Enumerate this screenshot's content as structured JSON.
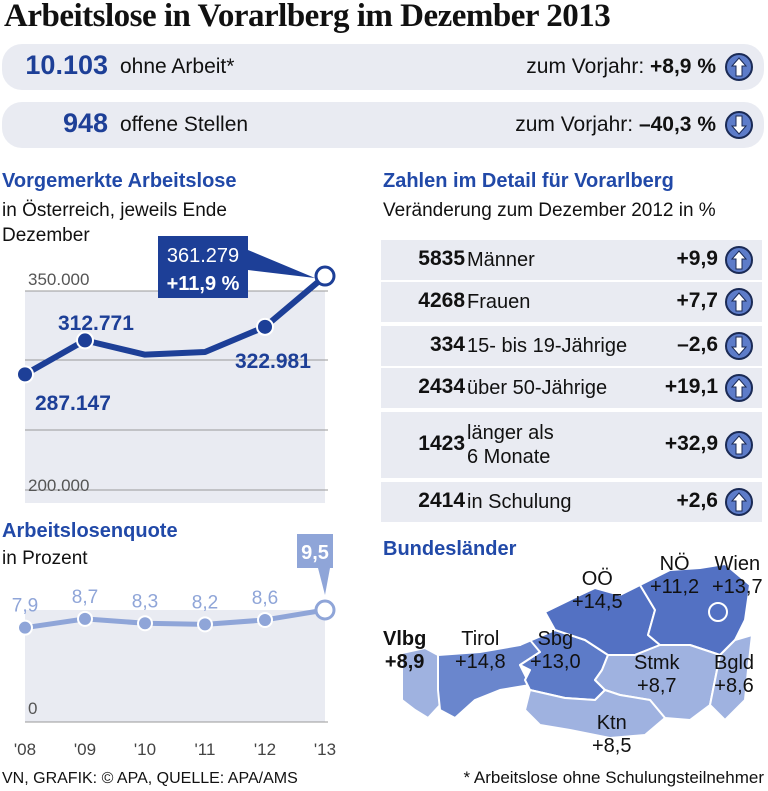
{
  "title": "Arbeitslose in Vorarlberg im Dezember 2013",
  "summary": [
    {
      "value": "10.103",
      "label": "ohne Arbeit*",
      "change_label": "zum Vorjahr:",
      "change": "+8,9 %",
      "direction": "up"
    },
    {
      "value": "948",
      "label": "offene Stellen",
      "change_label": "zum Vorjahr:",
      "change": "–40,3 %",
      "direction": "down"
    }
  ],
  "colors": {
    "dark_blue": "#1d3f97",
    "light_blue": "#8fa5d8",
    "band": "#e9ebf2",
    "map_dark": "#5371c3",
    "map_mid": "#6a86cd",
    "map_light": "#9fb2e0"
  },
  "chart_data": [
    {
      "type": "line",
      "title": "Vorgemerkte Arbeitslose",
      "subtitle": "in Österreich, jeweils Ende Dezember",
      "x": [
        "'08",
        "'09",
        "'10",
        "'11",
        "'12",
        "'13"
      ],
      "values": [
        287147,
        312771,
        302000,
        304000,
        322981,
        361279
      ],
      "data_labels": [
        "287.147",
        "312.771",
        "",
        "",
        "322.981",
        "361.279"
      ],
      "callout": {
        "value": "361.279",
        "change": "+11,9 %"
      },
      "yticks": [
        "350.000",
        "200.000"
      ],
      "ylim": [
        200000,
        350000
      ],
      "grid": true,
      "color": "#1d3f97"
    },
    {
      "type": "line",
      "title": "Arbeitslosenquote",
      "subtitle": "in Prozent",
      "x": [
        "'08",
        "'09",
        "'10",
        "'11",
        "'12",
        "'13"
      ],
      "values": [
        7.9,
        8.7,
        8.3,
        8.2,
        8.6,
        9.5
      ],
      "data_labels": [
        "7,9",
        "8,7",
        "8,3",
        "8,2",
        "8,6",
        "9,5"
      ],
      "yticks": [
        "0"
      ],
      "ylim": [
        0,
        9.5
      ],
      "grid": false,
      "color": "#8fa5d8"
    }
  ],
  "detail": {
    "title": "Zahlen im Detail für Vorarlberg",
    "subtitle": "Veränderung zum Dezember 2012 in %",
    "rows": [
      {
        "value": "5835",
        "label": "Männer",
        "change": "+9,9",
        "direction": "up"
      },
      {
        "value": "4268",
        "label": "Frauen",
        "change": "+7,7",
        "direction": "up"
      },
      {
        "value": "334",
        "label": "15- bis 19-Jährige",
        "change": "–2,6",
        "direction": "down"
      },
      {
        "value": "2434",
        "label": "über 50-Jährige",
        "change": "+19,1",
        "direction": "up"
      },
      {
        "value": "1423",
        "label": "länger als",
        "label2": "6 Monate",
        "change": "+32,9",
        "direction": "up"
      },
      {
        "value": "2414",
        "label": "in Schulung",
        "change": "+2,6",
        "direction": "up"
      }
    ]
  },
  "map": {
    "title": "Bundesländer",
    "states": [
      {
        "name": "Vlbg",
        "change": "+8,9"
      },
      {
        "name": "Tirol",
        "change": "+14,8"
      },
      {
        "name": "Sbg",
        "change": "+13,0"
      },
      {
        "name": "OÖ",
        "change": "+14,5"
      },
      {
        "name": "NÖ",
        "change": "+11,2"
      },
      {
        "name": "Wien",
        "change": "+13,7"
      },
      {
        "name": "Stmk",
        "change": "+8,7"
      },
      {
        "name": "Bgld",
        "change": "+8,6"
      },
      {
        "name": "Ktn",
        "change": "+8,5"
      }
    ]
  },
  "footer": {
    "source": "VN, GRAFIK: © APA, QUELLE: APA/AMS",
    "note": "* Arbeitslose ohne Schulungsteilnehmer"
  }
}
